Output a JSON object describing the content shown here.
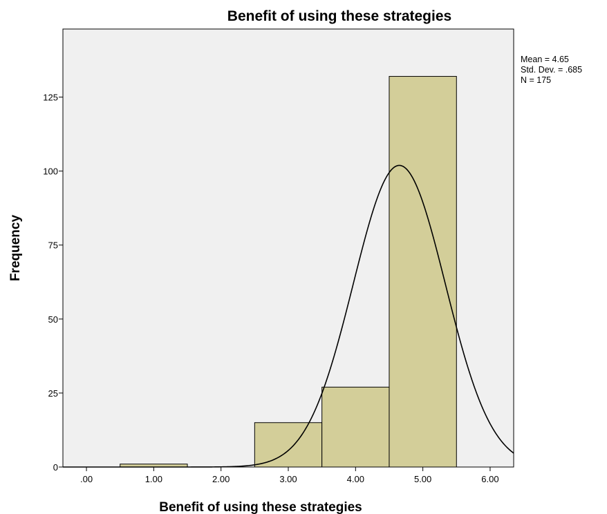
{
  "chart_data": {
    "type": "bar",
    "title": "Benefit of using these strategies",
    "xlabel": "Benefit of using these strategies",
    "ylabel": "Frequency",
    "x_ticks": [
      {
        "value": 0,
        "label": ".00"
      },
      {
        "value": 1,
        "label": "1.00"
      },
      {
        "value": 2,
        "label": "2.00"
      },
      {
        "value": 3,
        "label": "3.00"
      },
      {
        "value": 4,
        "label": "4.00"
      },
      {
        "value": 5,
        "label": "5.00"
      },
      {
        "value": 6,
        "label": "6.00"
      }
    ],
    "y_ticks": [
      {
        "value": 0,
        "label": "0"
      },
      {
        "value": 25,
        "label": "25"
      },
      {
        "value": 50,
        "label": "50"
      },
      {
        "value": 75,
        "label": "75"
      },
      {
        "value": 100,
        "label": "100"
      },
      {
        "value": 125,
        "label": "125"
      }
    ],
    "xlim": [
      -0.35,
      6.35
    ],
    "ylim": [
      0,
      148
    ],
    "bins": [
      {
        "start": 0.5,
        "end": 1.5,
        "count": 1
      },
      {
        "start": 2.5,
        "end": 3.5,
        "count": 15
      },
      {
        "start": 3.5,
        "end": 4.5,
        "count": 27
      },
      {
        "start": 4.5,
        "end": 5.5,
        "count": 132
      }
    ],
    "bar_color": "#d3ce99",
    "plot_background": "#f0f0f0",
    "normal_curve": {
      "mean": 4.65,
      "std_dev": 0.685,
      "n": 175,
      "bin_width": 1
    },
    "stats": {
      "mean": "Mean = 4.65",
      "std_dev": "Std. Dev. = .685",
      "n": "N = 175"
    },
    "legend_position": "right",
    "grid": false
  }
}
